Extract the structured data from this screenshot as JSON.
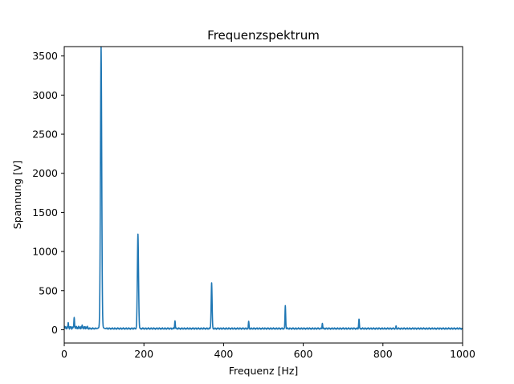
{
  "chart_data": {
    "type": "line",
    "title": "Frequenzspektrum",
    "xlabel": "Frequenz [Hz]",
    "ylabel": "Spannung [V]",
    "xlim": [
      0,
      1000
    ],
    "ylim": [
      -170,
      3620
    ],
    "xticks": [
      "0",
      "200",
      "400",
      "600",
      "800",
      "1000"
    ],
    "yticks": [
      "0",
      "500",
      "1000",
      "1500",
      "2000",
      "2500",
      "3000",
      "3500"
    ],
    "grid": false,
    "legend": "none",
    "series_color": "#1f77b4",
    "peaks": [
      {
        "x": 10,
        "y": 85
      },
      {
        "x": 25,
        "y": 145
      },
      {
        "x": 45,
        "y": 55
      },
      {
        "x": 92.5,
        "y": 3460
      },
      {
        "x": 185,
        "y": 1170
      },
      {
        "x": 278,
        "y": 105
      },
      {
        "x": 370,
        "y": 555
      },
      {
        "x": 463,
        "y": 100
      },
      {
        "x": 555,
        "y": 285
      },
      {
        "x": 648,
        "y": 75
      },
      {
        "x": 740,
        "y": 125
      },
      {
        "x": 833,
        "y": 45
      }
    ],
    "baseline": 15
  }
}
